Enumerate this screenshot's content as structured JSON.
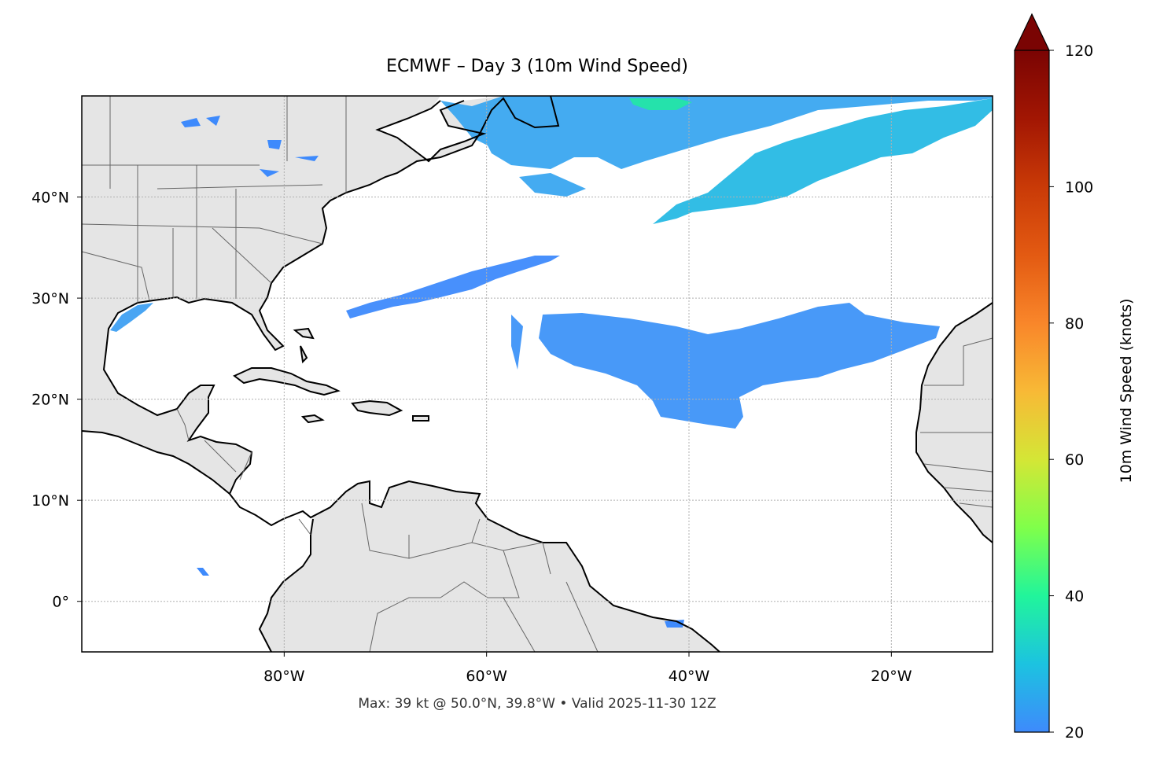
{
  "title": "ECMWF – Day 3 (10m Wind Speed)",
  "caption": "Max: 39 kt @ 50.0°N, 39.8°W • Valid 2025-11-30 12Z",
  "map": {
    "extent": {
      "lon": [
        -100,
        -10
      ],
      "lat": [
        -5,
        50
      ]
    },
    "lon_ticks": [
      {
        "value": -80,
        "label": "80°W"
      },
      {
        "value": -60,
        "label": "60°W"
      },
      {
        "value": -40,
        "label": "40°W"
      },
      {
        "value": -20,
        "label": "20°W"
      }
    ],
    "lat_ticks": [
      {
        "value": 40,
        "label": "40°N"
      },
      {
        "value": 30,
        "label": "30°N"
      },
      {
        "value": 20,
        "label": "20°N"
      },
      {
        "value": 10,
        "label": "10°N"
      },
      {
        "value": 0,
        "label": "0°"
      }
    ],
    "land_color": "#e5e5e5",
    "coast_color": "#000000",
    "border_color": "#666666"
  },
  "colorbar": {
    "label": "10m Wind Speed (knots)",
    "range": [
      20,
      120
    ],
    "ticks": [
      20,
      40,
      60,
      80,
      100,
      120
    ],
    "extend": "max",
    "colormap": "turbo",
    "over_color": "#7a0403",
    "stops": [
      {
        "value": 20,
        "color": "#3e8afc"
      },
      {
        "value": 30,
        "color": "#1cc3e0"
      },
      {
        "value": 40,
        "color": "#21f59b"
      },
      {
        "value": 50,
        "color": "#80ff4a"
      },
      {
        "value": 60,
        "color": "#d4e636"
      },
      {
        "value": 70,
        "color": "#f8b936"
      },
      {
        "value": 80,
        "color": "#f9862a"
      },
      {
        "value": 90,
        "color": "#e35a12"
      },
      {
        "value": 100,
        "color": "#c93a07"
      },
      {
        "value": 110,
        "color": "#a21603"
      },
      {
        "value": 120,
        "color": "#7a0403"
      }
    ]
  },
  "wind_areas": [
    {
      "name": "north-atlantic-west",
      "color": "#3aa6f0"
    },
    {
      "name": "north-atlantic-band",
      "color": "#27b9e4"
    },
    {
      "name": "subtropical-streak",
      "color": "#3e8afc"
    },
    {
      "name": "trade-wind-belt",
      "color": "#3e94f8"
    },
    {
      "name": "gulf-of-mexico",
      "color": "#3fa0f2"
    },
    {
      "name": "wind-max",
      "color": "#24e5a6"
    }
  ]
}
